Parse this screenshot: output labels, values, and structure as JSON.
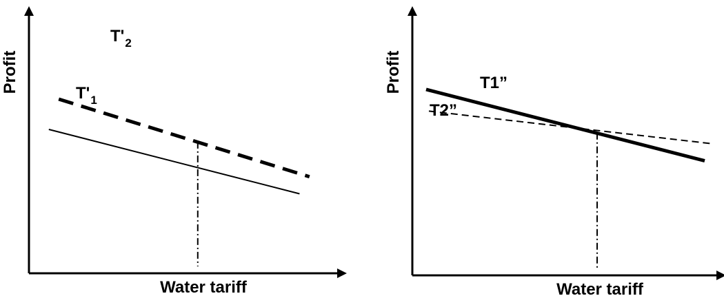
{
  "chart_data": [
    {
      "type": "line",
      "title": "",
      "xlabel": "Water tariff",
      "ylabel": "Profit",
      "xlim": [
        0,
        10
      ],
      "ylim": [
        0,
        10
      ],
      "axis_ticks": false,
      "grid": false,
      "legend": "none",
      "series": [
        {
          "name": "T'₁",
          "label_main": "T'",
          "label_sub": "1",
          "style": "solid",
          "weight": "thin",
          "x": [
            0.8,
            10.9
          ],
          "y": [
            7.6,
            4.2
          ]
        },
        {
          "name": "T'₂",
          "label_main": "T'",
          "label_sub": "2",
          "style": "dashed",
          "weight": "thick",
          "x": [
            1.2,
            11.3
          ],
          "y": [
            9.2,
            5.1
          ]
        }
      ],
      "reference_lines": [
        {
          "kind": "vertical",
          "style": "dash-dot",
          "x": 6.8,
          "y_from": 0,
          "y_to": 6.95
        }
      ]
    },
    {
      "type": "line",
      "title": "",
      "xlabel": "Water tariff",
      "ylabel": "Profit",
      "xlim": [
        0,
        10
      ],
      "ylim": [
        0,
        10
      ],
      "axis_ticks": false,
      "grid": false,
      "legend": "none",
      "series": [
        {
          "name": "T1''",
          "label_main": "T1”",
          "label_sub": "",
          "style": "solid",
          "weight": "thick",
          "x": [
            0.5,
            10.6
          ],
          "y": [
            8.6,
            5.3
          ]
        },
        {
          "name": "T2''",
          "label_main": "T2”",
          "label_sub": "",
          "style": "dashed",
          "weight": "thin",
          "x": [
            0.6,
            10.8
          ],
          "y": [
            7.6,
            6.1
          ]
        }
      ],
      "reference_lines": [
        {
          "kind": "vertical",
          "style": "dash-dot",
          "x": 6.7,
          "y_from": 0,
          "y_to": 6.6
        }
      ]
    }
  ]
}
